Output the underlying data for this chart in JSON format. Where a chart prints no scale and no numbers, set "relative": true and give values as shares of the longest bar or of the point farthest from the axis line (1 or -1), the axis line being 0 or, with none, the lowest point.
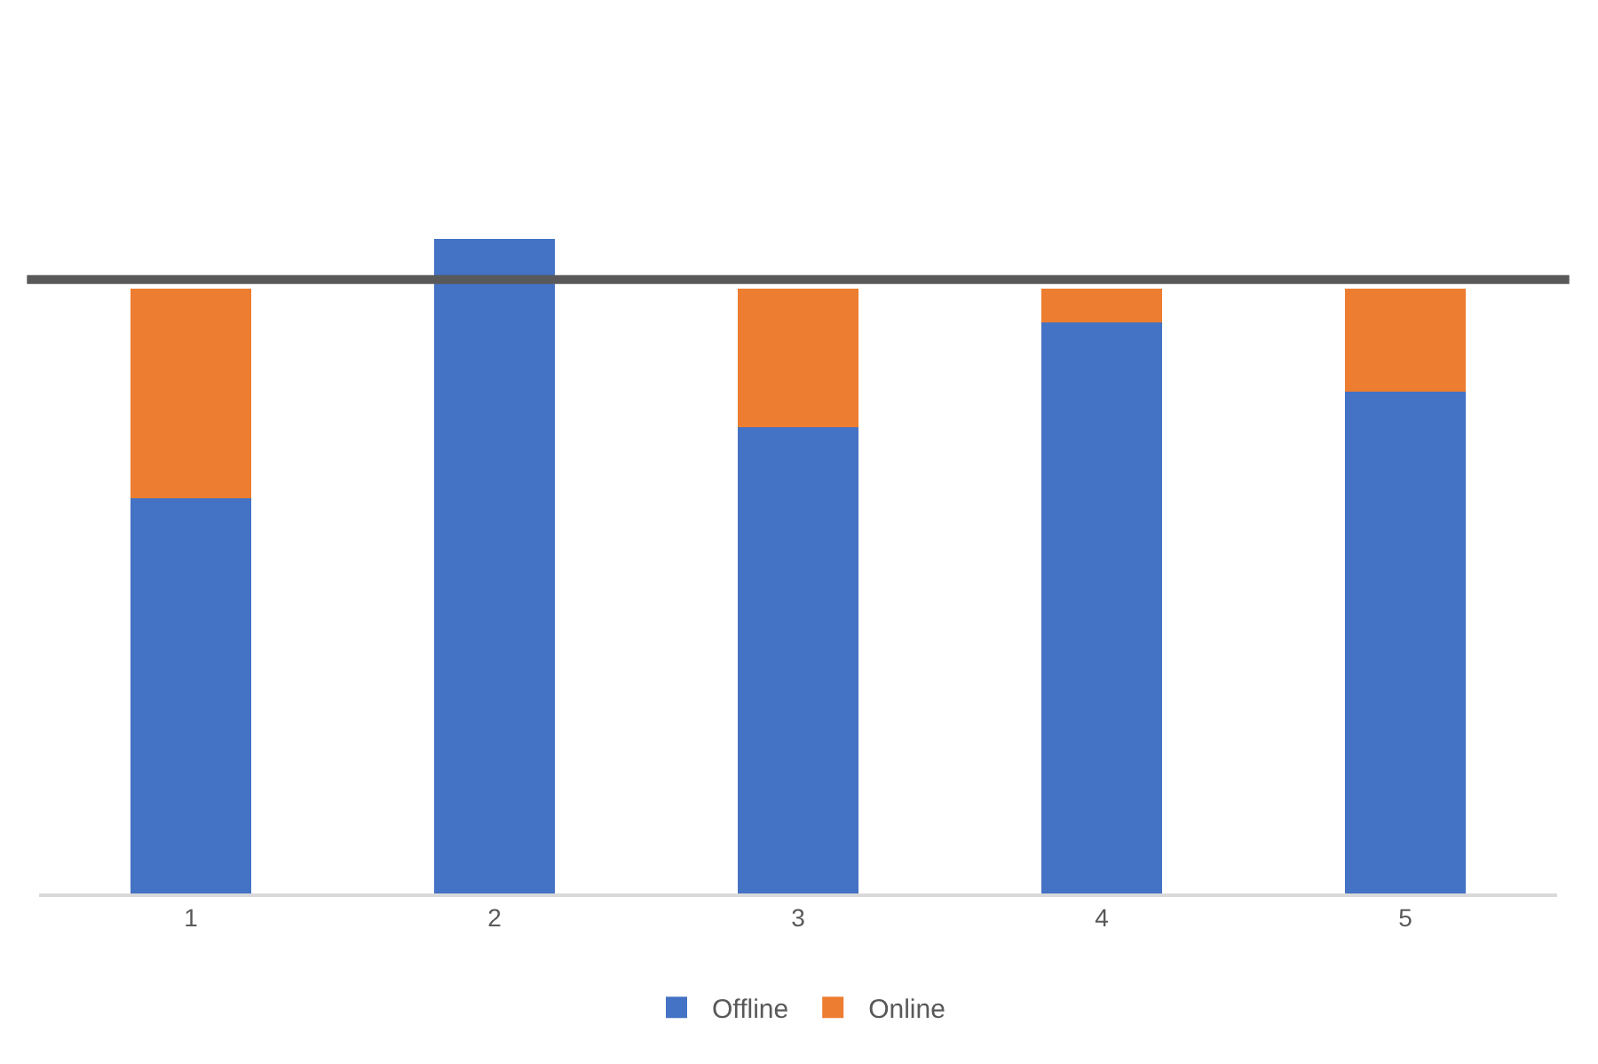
{
  "chart_data": {
    "type": "bar",
    "stacked": true,
    "relative": true,
    "categories": [
      "1",
      "2",
      "3",
      "4",
      "5"
    ],
    "series": [
      {
        "name": "Offline",
        "color": "#4472c4",
        "values": [
          0.604,
          1,
          0.713,
          0.873,
          0.767
        ]
      },
      {
        "name": "Online",
        "color": "#ed7d31",
        "values": [
          0.32,
          0,
          0.211,
          0.051,
          0.157
        ]
      }
    ],
    "ref_lines": [
      {
        "axis": "y",
        "value": 0.938,
        "color": "#595959"
      }
    ],
    "legend": "bottom"
  }
}
